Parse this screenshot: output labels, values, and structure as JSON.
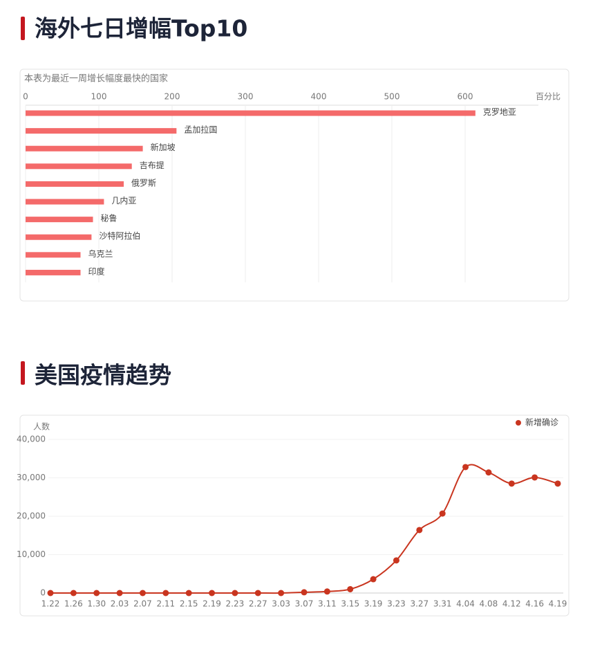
{
  "chart_data": [
    {
      "type": "barh",
      "title": "海外七日增幅Top10",
      "subtitle": "本表为最近一周增长幅度最快的国家",
      "xlabel": "百分比",
      "categories": [
        "克罗地亚",
        "孟加拉国",
        "新加坡",
        "吉布提",
        "俄罗斯",
        "几内亚",
        "秘鲁",
        "沙特阿拉伯",
        "乌克兰",
        "印度"
      ],
      "values": [
        614,
        206,
        160,
        145,
        134,
        107,
        92,
        90,
        75,
        75
      ],
      "color": "#f46a6a",
      "xlim": [
        0,
        700
      ],
      "xticks": [
        0,
        100,
        200,
        300,
        400,
        500,
        600
      ],
      "grid": true
    },
    {
      "type": "line",
      "title": "美国疫情趋势",
      "ylabel": "人数",
      "x": [
        "1.22",
        "1.26",
        "1.30",
        "2.03",
        "2.07",
        "2.11",
        "2.15",
        "2.19",
        "2.23",
        "2.27",
        "3.03",
        "3.07",
        "3.11",
        "3.15",
        "3.19",
        "3.23",
        "3.27",
        "3.31",
        "4.04",
        "4.08",
        "4.12",
        "4.16",
        "4.19"
      ],
      "series": [
        {
          "name": "新增确诊",
          "color": "#c9351f",
          "values": [
            0,
            0,
            0,
            0,
            0,
            0,
            0,
            0,
            0,
            0,
            0,
            200,
            400,
            1000,
            3600,
            8500,
            16400,
            20700,
            32800,
            31400,
            28500,
            30100,
            28500
          ]
        }
      ],
      "ylim": [
        0,
        40000
      ],
      "yticks": [
        0,
        {
          "value": 10000,
          "label": "10,000"
        },
        {
          "value": 20000,
          "label": "20,000"
        },
        {
          "value": 30000,
          "label": "30,000"
        },
        {
          "value": 40000,
          "label": "40,000"
        }
      ],
      "grid": true,
      "legend": "top-right"
    }
  ]
}
